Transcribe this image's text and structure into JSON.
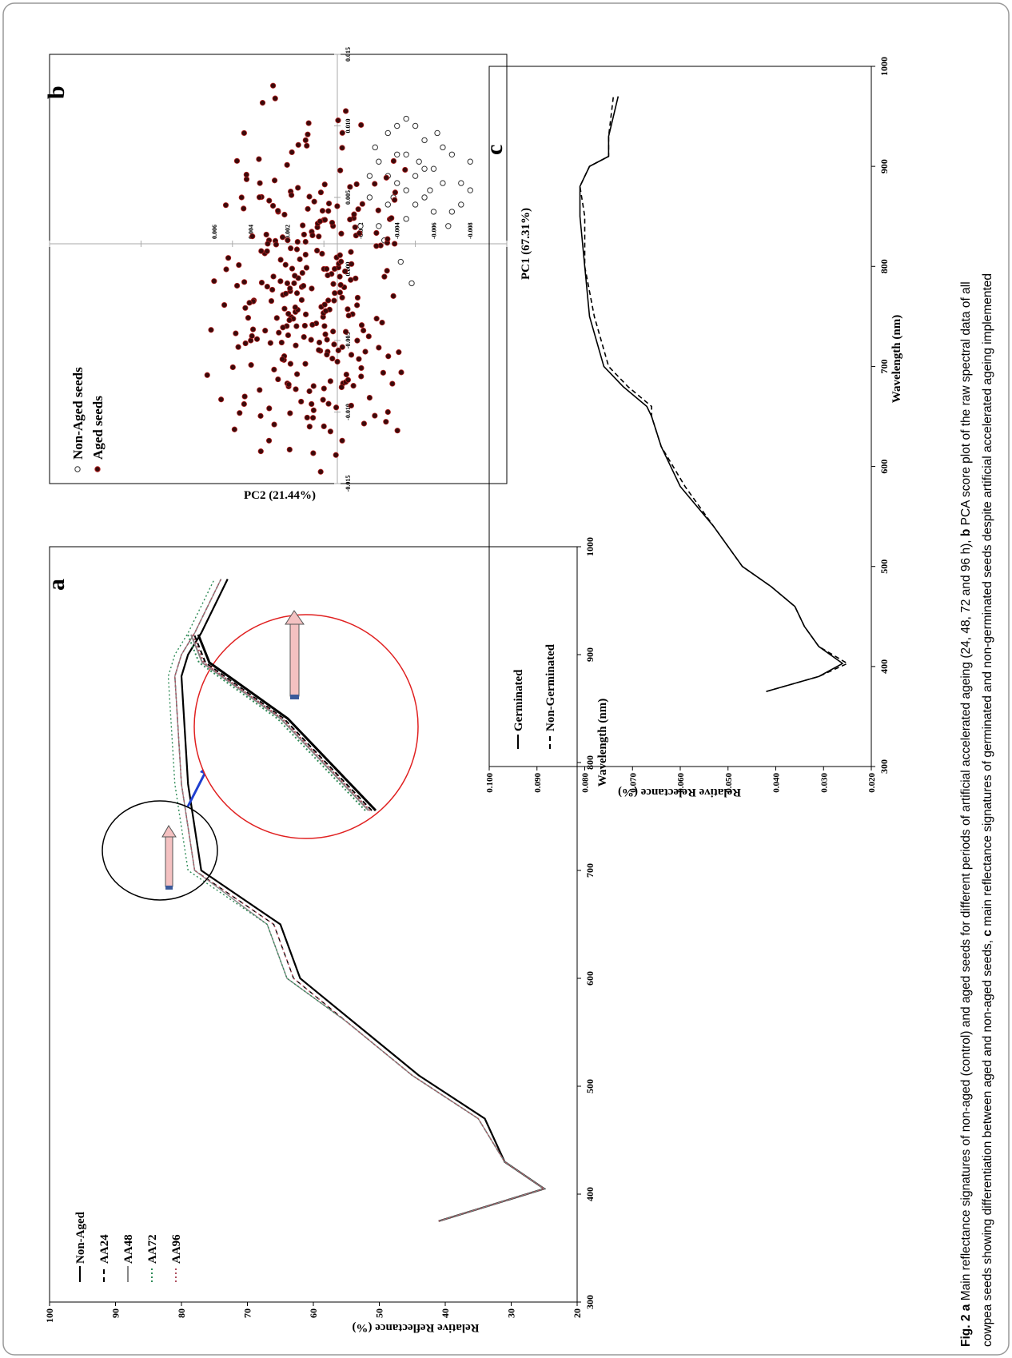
{
  "page": {
    "border_color": "#999999"
  },
  "caption": {
    "fig_label": "Fig. 2",
    "panel_a": "a",
    "text_a": " Main reflectance signatures of non-aged (control) and aged seeds for different periods of artificial accelerated ageing (24, 48, 72 and 96 h), ",
    "panel_b": "b",
    "text_b": " PCA score plot of the raw spectral data of all",
    "line2_a": "cowpea seeds showing differentiation between aged and non-aged seeds, ",
    "panel_c": "c",
    "line2_b": " main reflectance signatures of germinated and non-germinated seeds despite artificial accelerated ageing implemented"
  },
  "chart_data": [
    {
      "panel": "a",
      "type": "line",
      "xlabel": "Wavelength (nm)",
      "ylabel": "Relative Reflectance (%)",
      "xlim": [
        300,
        1000
      ],
      "ylim": [
        20,
        100
      ],
      "xticks": [
        "300",
        "400",
        "500",
        "600",
        "700",
        "800",
        "900",
        "1000"
      ],
      "yticks": [
        "20",
        "30",
        "40",
        "50",
        "60",
        "70",
        "80",
        "90",
        "100"
      ],
      "legend": [
        "Non-Aged",
        "AA24",
        "AA48",
        "AA72",
        "AA96"
      ],
      "legend_position": "top-left",
      "series": [
        {
          "name": "Non-Aged",
          "color": "#000000",
          "dash": "solid",
          "x": [
            375,
            405,
            430,
            470,
            510,
            560,
            600,
            650,
            700,
            780,
            880,
            900,
            920,
            970
          ],
          "y": [
            41,
            25,
            31,
            34,
            44,
            54,
            62,
            65,
            77,
            79,
            80,
            79,
            77,
            73
          ]
        },
        {
          "name": "AA24",
          "color": "#000000",
          "dash": "dashed",
          "x": [
            375,
            405,
            430,
            470,
            510,
            560,
            600,
            650,
            700,
            780,
            880,
            900,
            920,
            970
          ],
          "y": [
            41,
            25,
            31,
            35,
            45,
            55,
            63,
            66,
            78,
            80,
            81,
            80,
            78,
            74
          ]
        },
        {
          "name": "AA48",
          "color": "#888888",
          "dash": "solid",
          "x": [
            375,
            405,
            430,
            470,
            510,
            560,
            600,
            650,
            700,
            780,
            880,
            900,
            920,
            970
          ],
          "y": [
            41,
            25,
            31,
            35,
            45,
            55,
            64,
            67,
            78,
            80,
            81,
            80,
            78,
            74
          ]
        },
        {
          "name": "AA72",
          "color": "#2e8b57",
          "dash": "dotted",
          "x": [
            375,
            405,
            430,
            470,
            510,
            560,
            600,
            650,
            700,
            780,
            880,
            900,
            920,
            970
          ],
          "y": [
            41,
            25,
            31,
            35,
            45,
            55,
            64,
            67,
            79,
            81,
            82,
            81,
            79,
            75
          ]
        },
        {
          "name": "AA96",
          "color": "#b05060",
          "dash": "dotted",
          "x": [
            375,
            405,
            430,
            470,
            510,
            560,
            600,
            650,
            700,
            780,
            880,
            900,
            920,
            970
          ],
          "y": [
            41,
            25,
            31,
            35,
            45,
            55,
            63,
            66,
            78,
            80,
            81,
            80,
            78,
            74
          ]
        }
      ],
      "annotations": [
        "zoom circle around 560-640 nm with magnified inset circle",
        "arrow indicating increasing reflectance with ageing"
      ]
    },
    {
      "panel": "b",
      "type": "scatter",
      "xlabel": "PC1 (67.31%)",
      "ylabel": "PC2 (21.44%)",
      "xlim": [
        -0.01,
        0.015
      ],
      "ylim": [
        -0.015,
        0.015
      ],
      "xticks": [
        "-0.010",
        "-0.005",
        "0.000",
        "0.005",
        "0.010",
        "0.015"
      ],
      "yticks": [
        "-0.015",
        "-0.010",
        "-0.005",
        "0.000",
        "0.005",
        "0.010",
        "0.015"
      ],
      "x_tick_labels_on_axis": [
        "-0.008",
        "-0.006",
        "-0.004",
        "-0.002",
        "0.002",
        "0.004",
        "0.006"
      ],
      "legend": [
        "Non-Aged seeds",
        "Aged seeds"
      ],
      "legend_position": "top-left",
      "series": [
        {
          "name": "Non-Aged seeds",
          "marker": "open-circle",
          "color": "#333333",
          "points": [
            [
              -0.003,
              0.003
            ],
            [
              -0.0035,
              0.0045
            ],
            [
              -0.004,
              0.006
            ],
            [
              -0.0045,
              0.008
            ],
            [
              -0.005,
              0.01
            ],
            [
              -0.0055,
              0.005
            ],
            [
              -0.006,
              0.007
            ],
            [
              -0.0065,
              0.0085
            ],
            [
              -0.007,
              0.004
            ],
            [
              -0.0075,
              0.006
            ],
            [
              -0.008,
              0.0075
            ],
            [
              -0.0035,
              0.0095
            ],
            [
              -0.0045,
              0.0035
            ],
            [
              -0.005,
              0.0065
            ],
            [
              -0.0055,
              0.009
            ],
            [
              -0.0025,
              0.005
            ],
            [
              -0.003,
              0.0075
            ],
            [
              -0.004,
              0.01
            ],
            [
              -0.006,
              0.004
            ],
            [
              -0.0065,
              0.006
            ],
            [
              -0.007,
              0.008
            ],
            [
              -0.005,
              0.0045
            ],
            [
              -0.0045,
              0.0055
            ],
            [
              -0.0035,
              0.0065
            ],
            [
              -0.004,
              0.008
            ],
            [
              -0.0055,
              0.007
            ],
            [
              -0.002,
              0.003
            ],
            [
              -0.0025,
              0.0065
            ],
            [
              -0.0048,
              -0.001
            ],
            [
              -0.0042,
              0.0005
            ],
            [
              -0.0033,
              0.002
            ],
            [
              -0.0058,
              0.0055
            ],
            [
              -0.0062,
              0.0095
            ],
            [
              -0.0038,
              0.005
            ],
            [
              -0.0052,
              0.0075
            ],
            [
              -0.0075,
              0.0045
            ],
            [
              -0.0028,
              0.0085
            ],
            [
              -0.0068,
              0.003
            ],
            [
              -0.008,
              0.0055
            ],
            [
              -0.0045,
              0.0105
            ]
          ]
        },
        {
          "name": "Aged seeds",
          "marker": "filled-circle",
          "color": "#5a0f0f",
          "note": "approx. 300 points clustered around PC1 -0.002 to 0.004, PC2 -0.011 to 0.007",
          "points": [
            [
              0.003,
              -0.012
            ],
            [
              -0.001,
              -0.012
            ],
            [
              0.0,
              -0.011
            ],
            [
              0.002,
              -0.008
            ],
            [
              0.004,
              -0.005
            ],
            [
              0.0045,
              0.005
            ],
            [
              0.001,
              0.009
            ],
            [
              -0.0005,
              0.003
            ],
            [
              0.0,
              0.0
            ],
            [
              0.001,
              0.001
            ],
            [
              0.002,
              -0.001
            ],
            [
              -0.001,
              -0.002
            ],
            [
              0.003,
              0.002
            ],
            [
              0.0015,
              -0.004
            ],
            [
              -0.0015,
              -0.006
            ],
            [
              -0.003,
              -0.0055
            ],
            [
              -0.0025,
              -0.009
            ],
            [
              -0.0035,
              -0.01
            ],
            [
              0.0025,
              0.004
            ],
            [
              0.0035,
              0.006
            ]
          ]
        }
      ]
    },
    {
      "panel": "c",
      "type": "line",
      "xlabel": "Wavelength (nm)",
      "ylabel": "Relative Relectance (%)",
      "xlim": [
        300,
        1000
      ],
      "ylim": [
        0.02,
        0.1
      ],
      "xticks": [
        "300",
        "400",
        "500",
        "600",
        "700",
        "800",
        "900",
        "1000"
      ],
      "yticks": [
        "0.020",
        "0.030",
        "0.040",
        "0.050",
        "0.060",
        "0.070",
        "0.080",
        "0.090",
        "0.100"
      ],
      "legend": [
        "Germinated",
        "Non-Germinated"
      ],
      "legend_position": "top-left",
      "series": [
        {
          "name": "Germinated",
          "color": "#000000",
          "dash": "solid",
          "x": [
            375,
            390,
            403,
            420,
            440,
            460,
            480,
            500,
            540,
            580,
            620,
            650,
            660,
            680,
            700,
            750,
            800,
            850,
            880,
            900,
            910,
            930,
            970
          ],
          "y": [
            0.042,
            0.031,
            0.026,
            0.031,
            0.034,
            0.036,
            0.041,
            0.047,
            0.053,
            0.06,
            0.064,
            0.066,
            0.067,
            0.072,
            0.076,
            0.079,
            0.08,
            0.081,
            0.081,
            0.079,
            0.075,
            0.075,
            0.073
          ]
        },
        {
          "name": "Non-Germinated",
          "color": "#000000",
          "dash": "dashed",
          "x": [
            375,
            390,
            403,
            420,
            440,
            460,
            480,
            500,
            540,
            580,
            620,
            650,
            660,
            680,
            700,
            750,
            800,
            850,
            880,
            900,
            910,
            930,
            970
          ],
          "y": [
            0.042,
            0.031,
            0.025,
            0.031,
            0.034,
            0.036,
            0.041,
            0.047,
            0.053,
            0.059,
            0.064,
            0.066,
            0.066,
            0.071,
            0.075,
            0.078,
            0.08,
            0.08,
            0.081,
            0.079,
            0.075,
            0.075,
            0.074
          ]
        }
      ]
    }
  ]
}
